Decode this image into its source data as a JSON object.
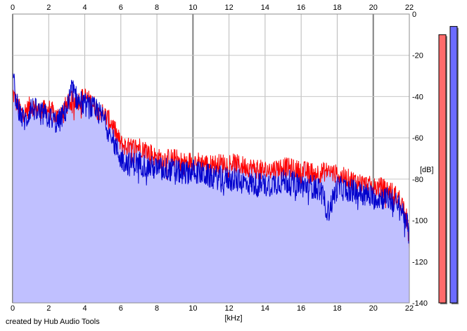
{
  "app": {
    "credit": "created by Hub Audio Tools"
  },
  "chart_data": {
    "type": "area",
    "title": "",
    "xlabel": "[kHz]",
    "ylabel": "[dB]",
    "xlim": [
      0,
      22
    ],
    "ylim": [
      -140,
      0
    ],
    "x_ticks": [
      0,
      2,
      4,
      6,
      8,
      10,
      12,
      14,
      16,
      18,
      20,
      22
    ],
    "y_ticks": [
      0,
      -20,
      -40,
      -60,
      -80,
      -100,
      -120,
      -140
    ],
    "y_tick_labels": [
      "0",
      "-20",
      "-40",
      "-60",
      "-80",
      "-100",
      "-120",
      "-140"
    ],
    "grid": true,
    "series": [
      {
        "color": "#ff0000",
        "x": [
          0,
          0.25,
          0.5,
          0.75,
          1,
          1.5,
          2,
          2.5,
          3,
          3.3,
          3.6,
          4,
          4.5,
          5,
          5.5,
          6,
          6.5,
          7,
          7.5,
          8,
          8.5,
          9,
          9.5,
          10,
          11,
          12,
          13,
          14,
          15,
          16,
          17,
          17.5,
          18,
          19,
          20,
          20.5,
          21,
          21.5,
          21.8,
          22
        ],
        "values": [
          -38,
          -44,
          -48,
          -47,
          -44,
          -47,
          -46,
          -50,
          -44,
          -42,
          -42,
          -40,
          -44,
          -48,
          -53,
          -63,
          -65,
          -64,
          -66,
          -70,
          -70,
          -70,
          -72,
          -71,
          -73,
          -72,
          -74,
          -76,
          -74,
          -76,
          -77,
          -76,
          -78,
          -81,
          -84,
          -84,
          -86,
          -90,
          -96,
          -110
        ]
      },
      {
        "color": "#0000cc",
        "x": [
          0,
          0.25,
          0.5,
          0.75,
          1,
          1.5,
          2,
          2.5,
          3,
          3.3,
          3.6,
          4,
          4.5,
          5,
          5.5,
          6,
          6.5,
          7,
          7.5,
          8,
          8.5,
          9,
          9.5,
          10,
          11,
          12,
          13,
          14,
          15,
          16,
          17,
          17.5,
          18,
          19,
          20,
          20.5,
          21,
          21.5,
          21.8,
          22
        ],
        "values": [
          -30,
          -44,
          -50,
          -52,
          -45,
          -48,
          -50,
          -53,
          -46,
          -36,
          -42,
          -44,
          -46,
          -50,
          -60,
          -70,
          -73,
          -72,
          -74,
          -75,
          -75,
          -76,
          -77,
          -76,
          -79,
          -80,
          -82,
          -83,
          -81,
          -83,
          -84,
          -96,
          -84,
          -86,
          -89,
          -89,
          -90,
          -94,
          -98,
          -108
        ]
      }
    ],
    "level_meters": [
      {
        "color": "#ff6b6b",
        "level_db": -10
      },
      {
        "color": "#6b6bff",
        "level_db": -6
      }
    ]
  }
}
